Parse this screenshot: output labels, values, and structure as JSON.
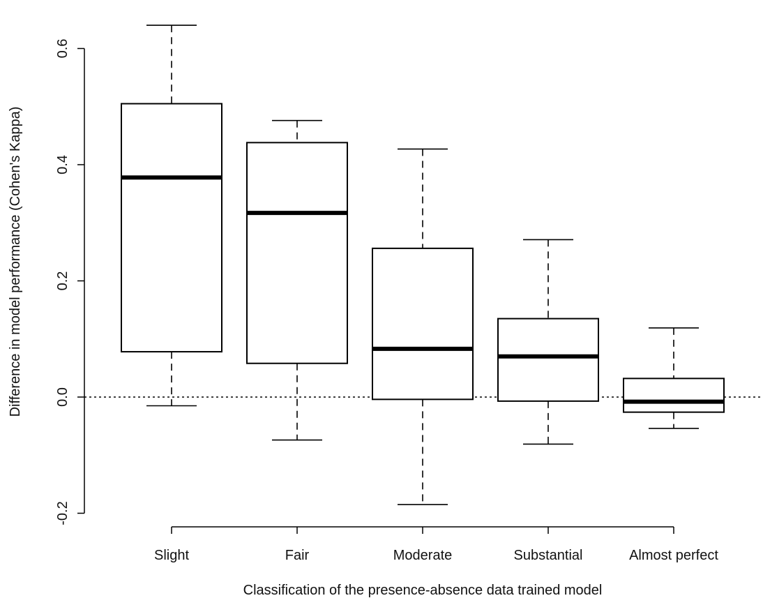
{
  "chart_data": {
    "type": "boxplot",
    "title": "",
    "xlabel": "Classification of the presence-absence data trained model",
    "ylabel": "Difference in model performance (Cohen's Kappa)",
    "categories": [
      "Slight",
      "Fair",
      "Moderate",
      "Substantial",
      "Almost perfect"
    ],
    "boxes": [
      {
        "category": "Slight",
        "whisker_low": -0.015,
        "q1": 0.078,
        "median": 0.378,
        "q3": 0.505,
        "whisker_high": 0.64
      },
      {
        "category": "Fair",
        "whisker_low": -0.074,
        "q1": 0.058,
        "median": 0.317,
        "q3": 0.438,
        "whisker_high": 0.476
      },
      {
        "category": "Moderate",
        "whisker_low": -0.185,
        "q1": -0.004,
        "median": 0.083,
        "q3": 0.256,
        "whisker_high": 0.427
      },
      {
        "category": "Substantial",
        "whisker_low": -0.081,
        "q1": -0.007,
        "median": 0.07,
        "q3": 0.135,
        "whisker_high": 0.271
      },
      {
        "category": "Almost perfect",
        "whisker_low": -0.054,
        "q1": -0.026,
        "median": -0.008,
        "q3": 0.032,
        "whisker_high": 0.119
      }
    ],
    "reference_line": 0.0,
    "ylim": [
      -0.2,
      0.6
    ],
    "yticks": [
      -0.2,
      0.0,
      0.2,
      0.4,
      0.6
    ],
    "ytick_labels": [
      "-0.2",
      "0.0",
      "0.2",
      "0.4",
      "0.6"
    ],
    "grid": false,
    "legend": "none"
  }
}
